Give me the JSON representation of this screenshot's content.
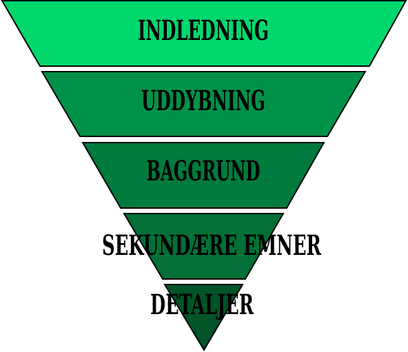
{
  "diagram": {
    "type": "inverted-pyramid",
    "tiers": [
      {
        "label": "INDLEDNING",
        "color": "#00d86e"
      },
      {
        "label": "UDDYBNING",
        "color": "#009149"
      },
      {
        "label": "BAGGRUND",
        "color": "#007a3d"
      },
      {
        "label": "SEKUNDÆRE EMNER",
        "color": "#016f36"
      },
      {
        "label": "DETALJER",
        "color": "#005427"
      }
    ],
    "outline_color": "#000000"
  }
}
